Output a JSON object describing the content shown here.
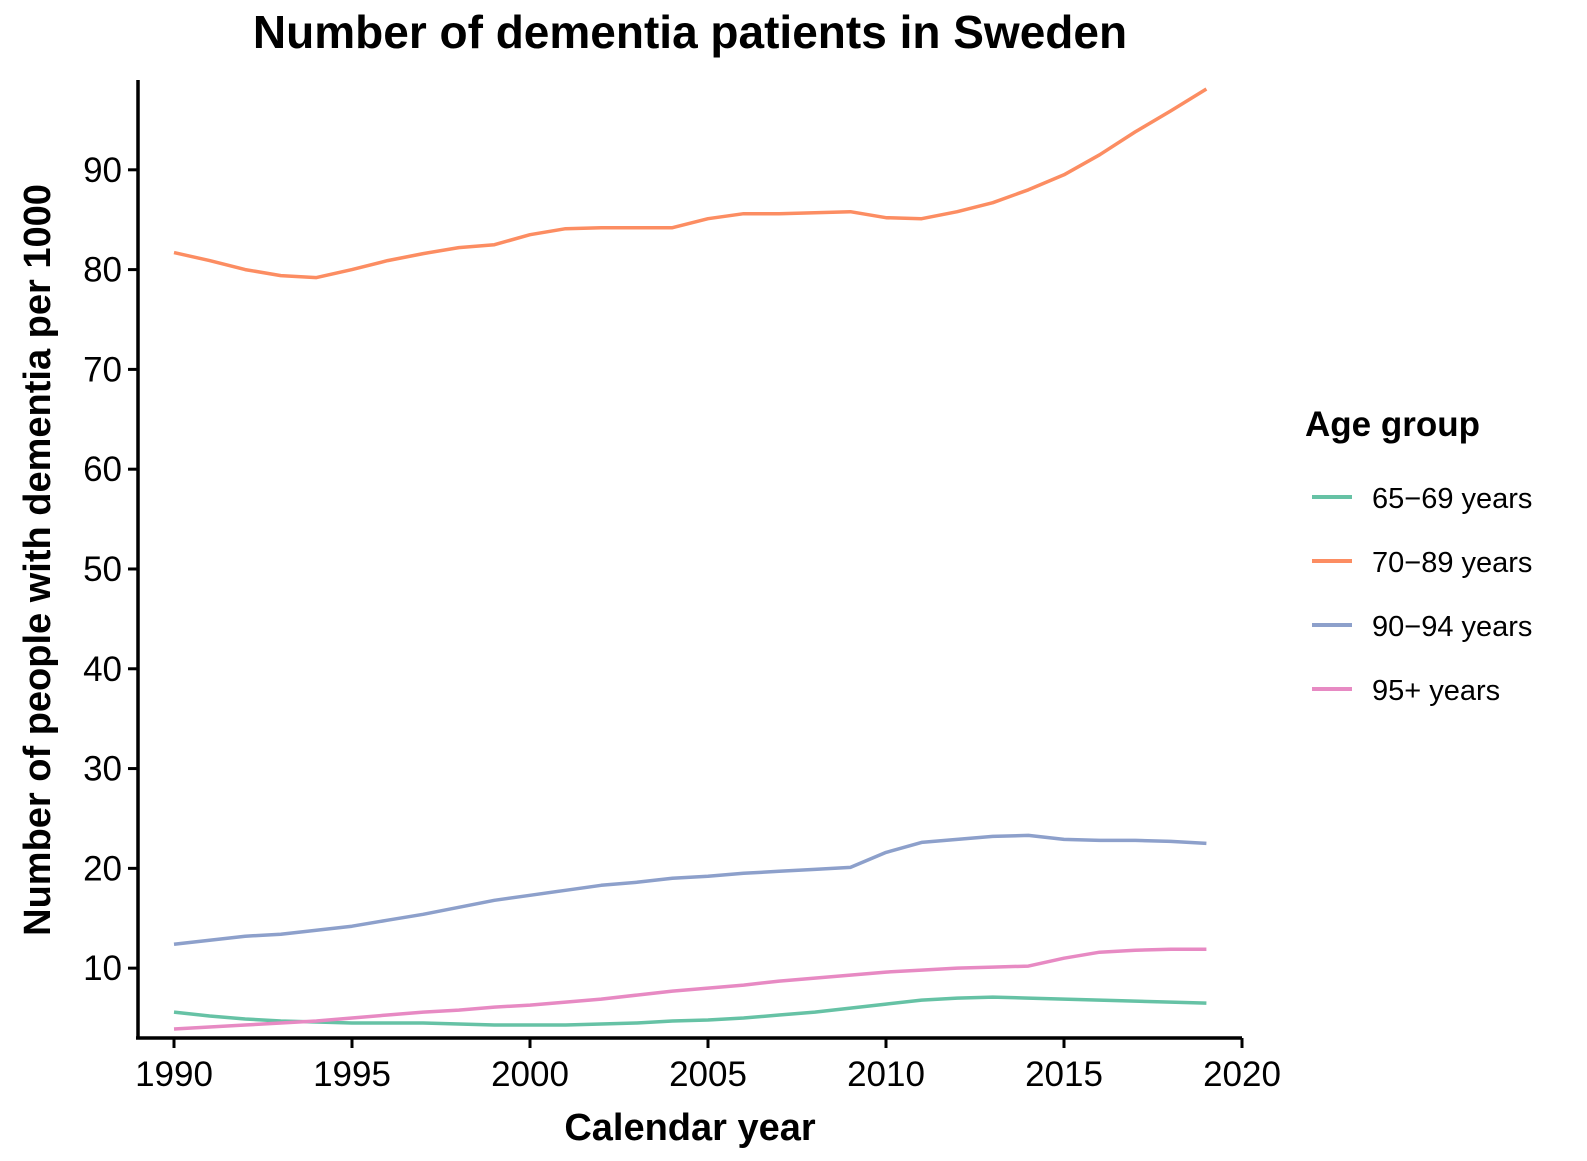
{
  "chart_data": {
    "type": "line",
    "title": "Number of dementia patients in Sweden",
    "xlabel": "Calendar year",
    "ylabel": "Number of people with dementia per 1000",
    "xlim": [
      1989,
      2020
    ],
    "ylim": [
      3,
      99
    ],
    "x_ticks": [
      1990,
      1995,
      2000,
      2005,
      2010,
      2015,
      2020
    ],
    "y_ticks": [
      10,
      20,
      30,
      40,
      50,
      60,
      70,
      80,
      90
    ],
    "grid": false,
    "legend": {
      "title": "Age group",
      "placement": "right"
    },
    "x": [
      1990,
      1991,
      1992,
      1993,
      1994,
      1995,
      1996,
      1997,
      1998,
      1999,
      2000,
      2001,
      2002,
      2003,
      2004,
      2005,
      2006,
      2007,
      2008,
      2009,
      2010,
      2011,
      2012,
      2013,
      2014,
      2015,
      2016,
      2017,
      2018,
      2019
    ],
    "series": [
      {
        "name": "65−69 years",
        "color": "#66c2a5",
        "values": [
          5.6,
          5.2,
          4.9,
          4.7,
          4.6,
          4.5,
          4.5,
          4.5,
          4.4,
          4.3,
          4.3,
          4.3,
          4.4,
          4.5,
          4.7,
          4.8,
          5.0,
          5.3,
          5.6,
          6.0,
          6.4,
          6.8,
          7.0,
          7.1,
          7.0,
          6.9,
          6.8,
          6.7,
          6.6,
          6.5
        ]
      },
      {
        "name": "70−89 years",
        "color": "#fc8d62",
        "values": [
          81.7,
          80.9,
          80.0,
          79.4,
          79.2,
          80.0,
          80.9,
          81.6,
          82.2,
          82.5,
          83.5,
          84.1,
          84.2,
          84.2,
          84.2,
          85.1,
          85.6,
          85.6,
          85.7,
          85.8,
          85.2,
          85.1,
          85.8,
          86.7,
          88.0,
          89.5,
          91.5,
          93.8,
          95.9,
          98.1
        ]
      },
      {
        "name": "90−94 years",
        "color": "#8da0cb",
        "values": [
          12.4,
          12.8,
          13.2,
          13.4,
          13.8,
          14.2,
          14.8,
          15.4,
          16.1,
          16.8,
          17.3,
          17.8,
          18.3,
          18.6,
          19.0,
          19.2,
          19.5,
          19.7,
          19.9,
          20.1,
          21.6,
          22.6,
          22.9,
          23.2,
          23.3,
          22.9,
          22.8,
          22.8,
          22.7,
          22.5
        ]
      },
      {
        "name": "95+ years",
        "color": "#e78ac3",
        "values": [
          3.9,
          4.1,
          4.3,
          4.5,
          4.7,
          5.0,
          5.3,
          5.6,
          5.8,
          6.1,
          6.3,
          6.6,
          6.9,
          7.3,
          7.7,
          8.0,
          8.3,
          8.7,
          9.0,
          9.3,
          9.6,
          9.8,
          10.0,
          10.1,
          10.2,
          11.0,
          11.6,
          11.8,
          11.9,
          11.9
        ]
      }
    ]
  }
}
